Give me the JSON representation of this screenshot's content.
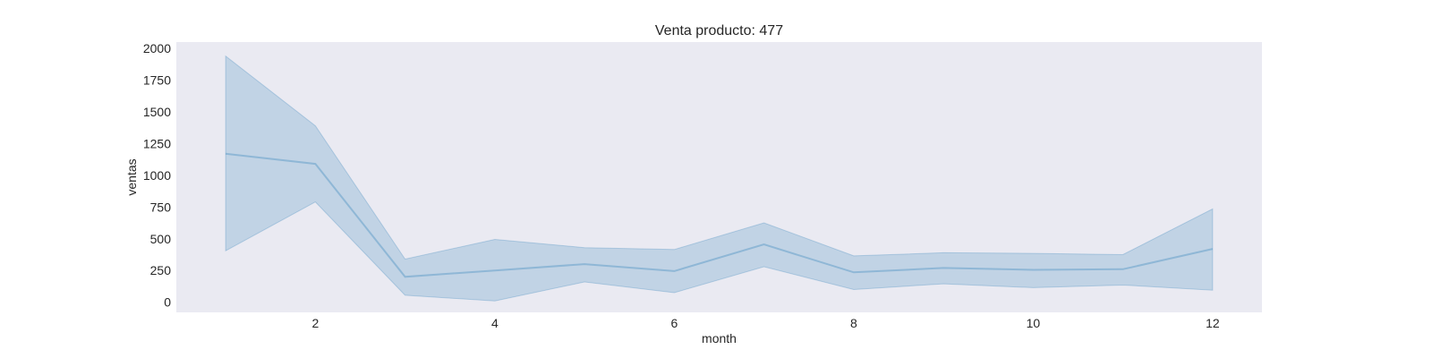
{
  "chart_data": {
    "type": "line",
    "title": "Venta producto: 477",
    "xlabel": "month",
    "ylabel": "ventas",
    "xlim": [
      0.45,
      12.55
    ],
    "ylim": [
      -80,
      2050
    ],
    "x_ticks": [
      2,
      4,
      6,
      8,
      10,
      12
    ],
    "y_ticks": [
      0,
      250,
      500,
      750,
      1000,
      1250,
      1500,
      1750,
      2000
    ],
    "grid": false,
    "series": [
      {
        "x": [
          1,
          2,
          3,
          4,
          5,
          6,
          7,
          8,
          9,
          10,
          11,
          12
        ],
        "mean": [
          1170,
          1090,
          200,
          250,
          300,
          245,
          455,
          235,
          270,
          255,
          260,
          420
        ],
        "ci_lower": [
          405,
          790,
          55,
          10,
          160,
          75,
          280,
          100,
          145,
          115,
          135,
          95
        ],
        "ci_upper": [
          1940,
          1390,
          340,
          495,
          430,
          415,
          625,
          365,
          390,
          385,
          375,
          735
        ]
      }
    ],
    "colors": {
      "plot_background": "#eaeaf2",
      "line": "#1f77b4",
      "band": "#1f77b4"
    }
  }
}
